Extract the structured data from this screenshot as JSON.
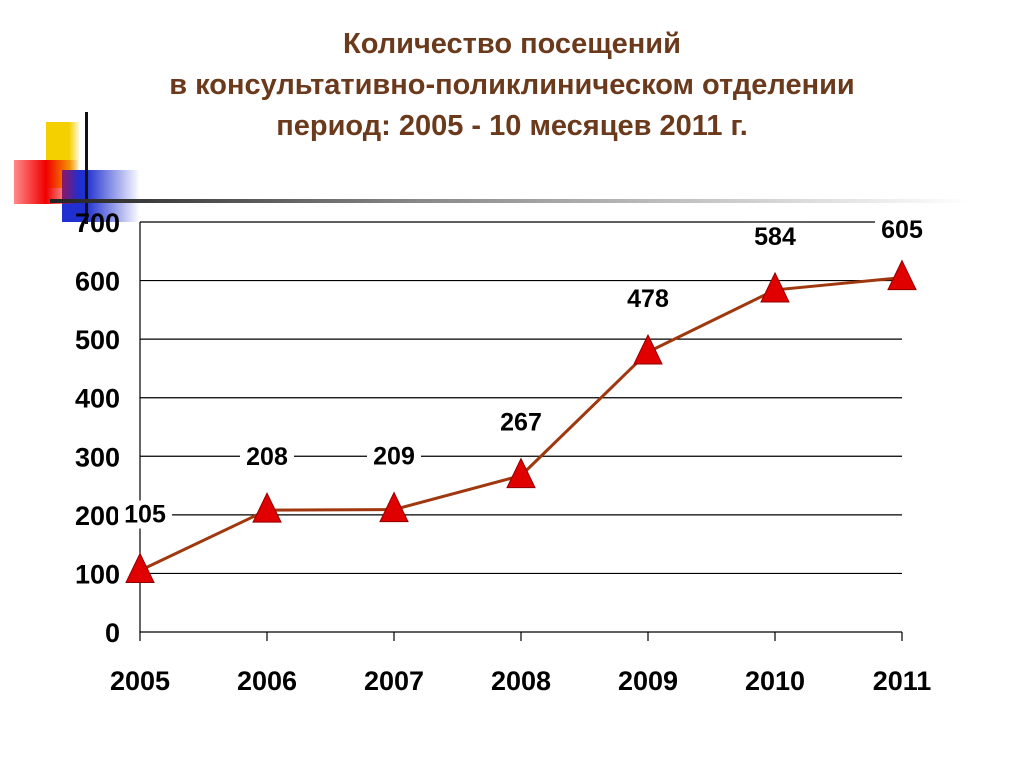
{
  "title": {
    "line1": "Количество посещений",
    "line2": "в консультативно-поликлиническом отделении",
    "line3": "период: 2005 - 10 месяцев 2011 г."
  },
  "colors": {
    "title": "#6b3a1c",
    "line": "#a0380f",
    "marker": "#e00000",
    "grid": "#000000"
  },
  "chart_data": {
    "type": "line",
    "categories": [
      "2005",
      "2006",
      "2007",
      "2008",
      "2009",
      "2010",
      "2011"
    ],
    "values": [
      105,
      208,
      209,
      267,
      478,
      584,
      605
    ],
    "ylim": [
      0,
      700
    ],
    "yticks": [
      0,
      100,
      200,
      300,
      400,
      500,
      600,
      700
    ],
    "grid": true,
    "marker": "triangle",
    "data_labels": true
  }
}
